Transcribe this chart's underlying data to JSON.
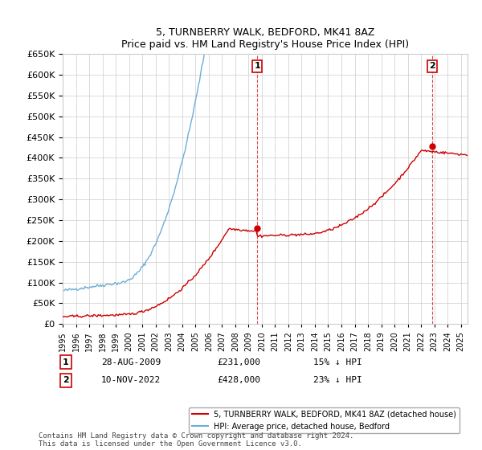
{
  "title": "5, TURNBERRY WALK, BEDFORD, MK41 8AZ",
  "subtitle": "Price paid vs. HM Land Registry's House Price Index (HPI)",
  "ylabel_ticks": [
    "£0",
    "£50K",
    "£100K",
    "£150K",
    "£200K",
    "£250K",
    "£300K",
    "£350K",
    "£400K",
    "£450K",
    "£500K",
    "£550K",
    "£600K",
    "£650K"
  ],
  "ylim": [
    0,
    650000
  ],
  "yticks": [
    0,
    50000,
    100000,
    150000,
    200000,
    250000,
    300000,
    350000,
    400000,
    450000,
    500000,
    550000,
    600000,
    650000
  ],
  "xlim_start": 1995.0,
  "xlim_end": 2025.5,
  "transaction1_x": 2009.65,
  "transaction1_y": 231000,
  "transaction1_label": "28-AUG-2009",
  "transaction1_price": "£231,000",
  "transaction1_hpi": "15% ↓ HPI",
  "transaction2_x": 2022.85,
  "transaction2_y": 428000,
  "transaction2_label": "10-NOV-2022",
  "transaction2_price": "£428,000",
  "transaction2_hpi": "23% ↓ HPI",
  "hpi_color": "#6baed6",
  "price_color": "#cc0000",
  "legend_property": "5, TURNBERRY WALK, BEDFORD, MK41 8AZ (detached house)",
  "legend_hpi": "HPI: Average price, detached house, Bedford",
  "footnote": "Contains HM Land Registry data © Crown copyright and database right 2024.\nThis data is licensed under the Open Government Licence v3.0.",
  "background_color": "#ffffff",
  "grid_color": "#cccccc"
}
